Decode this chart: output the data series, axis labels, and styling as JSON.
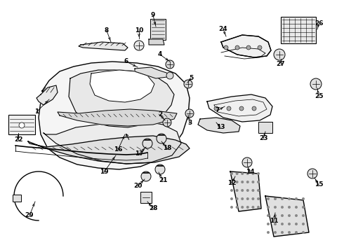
{
  "bg_color": "#ffffff",
  "fig_width": 4.9,
  "fig_height": 3.6,
  "dpi": 100,
  "line_color": "#000000",
  "fill_light": "#f0f0f0",
  "fill_med": "#d8d8d8"
}
